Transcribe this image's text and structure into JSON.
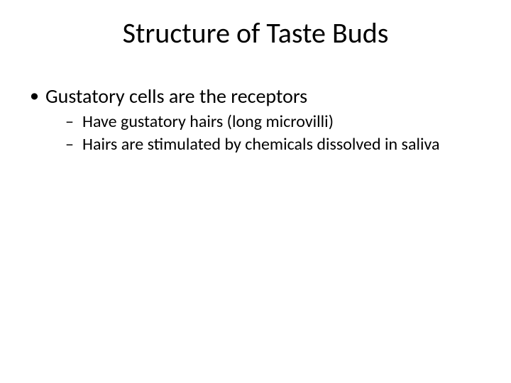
{
  "slide": {
    "title": "Structure of Taste Buds",
    "bullets": [
      {
        "text": "Gustatory cells are the receptors",
        "children": [
          {
            "text": "Have gustatory hairs (long microvilli)"
          },
          {
            "text": "Hairs are stimulated by chemicals dissolved in saliva"
          }
        ]
      }
    ]
  },
  "style": {
    "background_color": "#ffffff",
    "text_color": "#000000",
    "title_fontsize": 40,
    "level1_fontsize": 28,
    "level2_fontsize": 24,
    "font_family": "Calibri",
    "bullet_level1_glyph": "•",
    "bullet_level2_glyph": "–"
  }
}
